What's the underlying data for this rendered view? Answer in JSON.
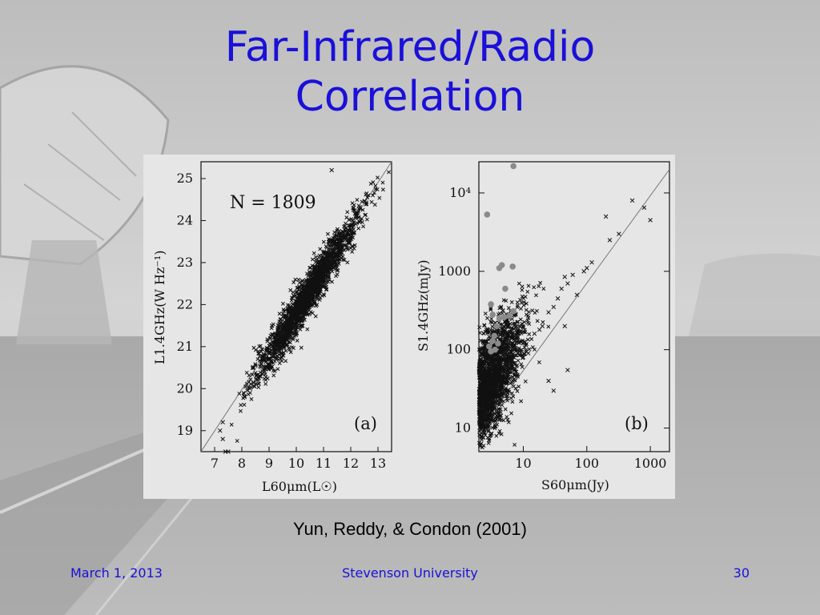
{
  "slide": {
    "title_line1": "Far-Infrared/Radio",
    "title_line2": "Correlation",
    "caption": "Yun, Reddy, & Condon (2001)",
    "footer": {
      "date": "March 1, 2013",
      "organization": "Stevenson University",
      "page": "30"
    },
    "background": "gray photo of radio telescope dish and road",
    "colors": {
      "title": "#1a10d8",
      "footer": "#1a10d8",
      "figure_bg": "#e6e6e6"
    }
  },
  "chart_data": [
    {
      "type": "scatter",
      "panel_label": "(a)",
      "annotation": "N = 1809",
      "xlabel": "L60μm(L☉)",
      "ylabel": "L1.4GHz(W Hz⁻¹)",
      "xlim": [
        6.5,
        13.5
      ],
      "ylim": [
        18.5,
        25.4
      ],
      "x_ticks": [
        7,
        8,
        9,
        10,
        11,
        12,
        13
      ],
      "y_ticks": [
        19,
        20,
        21,
        22,
        23,
        24,
        25
      ],
      "fit_line": {
        "x": [
          6.5,
          13.5
        ],
        "y": [
          18.4,
          25.4
        ]
      },
      "cloud": {
        "x_center": 10.4,
        "y_center": 22.2,
        "slope": 1.0,
        "spread": 0.25,
        "count": 1809
      },
      "notable_points": [
        {
          "x": 7.3,
          "y": 19.2
        },
        {
          "x": 7.2,
          "y": 19.0
        },
        {
          "x": 7.3,
          "y": 18.8
        },
        {
          "x": 7.5,
          "y": 18.5
        },
        {
          "x": 7.4,
          "y": 18.5
        },
        {
          "x": 11.3,
          "y": 25.2
        },
        {
          "x": 8.1,
          "y": 19.8
        },
        {
          "x": 8.3,
          "y": 20.0
        }
      ],
      "grid": false
    },
    {
      "type": "scatter",
      "panel_label": "(b)",
      "xlabel": "S60μm(Jy)",
      "ylabel": "S1.4GHz(mJy)",
      "xscale": "log",
      "yscale": "log",
      "xlim": [
        2,
        2000
      ],
      "ylim": [
        5,
        25000
      ],
      "x_ticks": [
        10,
        100,
        1000
      ],
      "y_ticks": [
        10,
        100,
        1000,
        10000
      ],
      "y_tick_labels": [
        "10",
        "100",
        "1000",
        "10⁴"
      ],
      "fit_line": {
        "x": [
          2,
          2000
        ],
        "y": [
          9,
          20000
        ]
      },
      "crosses": [
        {
          "x": 520,
          "y": 8000
        },
        {
          "x": 800,
          "y": 6500
        },
        {
          "x": 1000,
          "y": 4500
        },
        {
          "x": 200,
          "y": 5000
        },
        {
          "x": 320,
          "y": 3000
        },
        {
          "x": 230,
          "y": 2500
        },
        {
          "x": 120,
          "y": 1300
        },
        {
          "x": 100,
          "y": 1100
        },
        {
          "x": 90,
          "y": 1000
        },
        {
          "x": 60,
          "y": 900
        },
        {
          "x": 50,
          "y": 700
        },
        {
          "x": 45,
          "y": 850
        },
        {
          "x": 40,
          "y": 600
        },
        {
          "x": 70,
          "y": 500
        },
        {
          "x": 35,
          "y": 450
        },
        {
          "x": 30,
          "y": 350
        },
        {
          "x": 25,
          "y": 300
        },
        {
          "x": 20,
          "y": 200
        },
        {
          "x": 18,
          "y": 180
        },
        {
          "x": 15,
          "y": 160
        },
        {
          "x": 45,
          "y": 200
        },
        {
          "x": 50,
          "y": 55
        },
        {
          "x": 30,
          "y": 30
        },
        {
          "x": 25,
          "y": 40
        },
        {
          "x": 12,
          "y": 90
        },
        {
          "x": 10,
          "y": 80
        }
      ],
      "cloud": {
        "x_center": 3.0,
        "y_center": 25,
        "count": 1750
      },
      "gray_dots": [
        {
          "x": 7,
          "y": 22000
        },
        {
          "x": 2.7,
          "y": 5300
        },
        {
          "x": 4.6,
          "y": 1200
        },
        {
          "x": 4.2,
          "y": 1100
        },
        {
          "x": 6.8,
          "y": 1150
        },
        {
          "x": 5.2,
          "y": 600
        },
        {
          "x": 6.0,
          "y": 270
        },
        {
          "x": 7.0,
          "y": 310
        },
        {
          "x": 3.1,
          "y": 380
        },
        {
          "x": 3.3,
          "y": 280
        },
        {
          "x": 4.2,
          "y": 250
        },
        {
          "x": 3.8,
          "y": 200
        },
        {
          "x": 5.0,
          "y": 260
        },
        {
          "x": 3.5,
          "y": 150
        },
        {
          "x": 3.3,
          "y": 130
        },
        {
          "x": 4.0,
          "y": 120
        },
        {
          "x": 2.9,
          "y": 110
        },
        {
          "x": 3.1,
          "y": 95
        },
        {
          "x": 3.6,
          "y": 100
        }
      ],
      "grid": false
    }
  ]
}
